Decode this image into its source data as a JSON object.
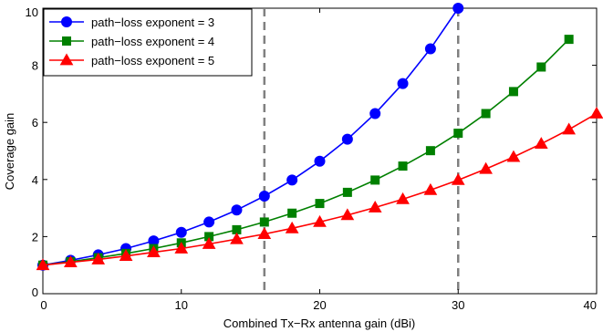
{
  "chart_data": {
    "type": "line",
    "title": "",
    "xlabel": "Combined Tx−Rx antenna gain (dBi)",
    "ylabel": "Coverage gain",
    "xlim": [
      0,
      40
    ],
    "ylim": [
      0,
      10
    ],
    "xticks": [
      0,
      10,
      20,
      30,
      40
    ],
    "yticks": [
      0,
      2,
      4,
      6,
      8,
      10
    ],
    "xtick_labels": [
      "0",
      "10",
      "20",
      "30",
      "40"
    ],
    "ytick_labels": [
      "0",
      "2",
      "4",
      "6",
      "8",
      "10"
    ],
    "grid": false,
    "legend_position": "top-left",
    "reference_lines_x": [
      16,
      30
    ],
    "series": [
      {
        "name": "path−loss exponent = 3",
        "color": "#0000ff",
        "marker": "circle",
        "x": [
          0,
          2,
          4,
          6,
          8,
          10,
          12,
          14,
          16,
          18,
          20,
          22,
          24,
          26,
          28,
          30
        ],
        "y": [
          1.0,
          1.17,
          1.36,
          1.58,
          1.85,
          2.15,
          2.51,
          2.93,
          3.42,
          3.98,
          4.64,
          5.41,
          6.31,
          7.36,
          8.58,
          10.0
        ]
      },
      {
        "name": "path−loss exponent = 4",
        "color": "#008000",
        "marker": "square",
        "x": [
          0,
          2,
          4,
          6,
          8,
          10,
          12,
          14,
          16,
          18,
          20,
          22,
          24,
          26,
          28,
          30,
          32,
          34,
          36,
          38
        ],
        "y": [
          1.0,
          1.12,
          1.26,
          1.41,
          1.58,
          1.78,
          2.0,
          2.24,
          2.51,
          2.82,
          3.16,
          3.55,
          3.98,
          4.47,
          5.01,
          5.62,
          6.31,
          7.08,
          7.94,
          8.91
        ]
      },
      {
        "name": "path−loss exponent = 5",
        "color": "#ff0000",
        "marker": "triangle",
        "x": [
          0,
          2,
          4,
          6,
          8,
          10,
          12,
          14,
          16,
          18,
          20,
          22,
          24,
          26,
          28,
          30,
          32,
          34,
          36,
          38,
          40
        ],
        "y": [
          1.0,
          1.1,
          1.2,
          1.32,
          1.45,
          1.58,
          1.74,
          1.91,
          2.09,
          2.29,
          2.51,
          2.75,
          3.02,
          3.31,
          3.63,
          3.98,
          4.37,
          4.79,
          5.25,
          5.75,
          6.31
        ]
      }
    ]
  }
}
